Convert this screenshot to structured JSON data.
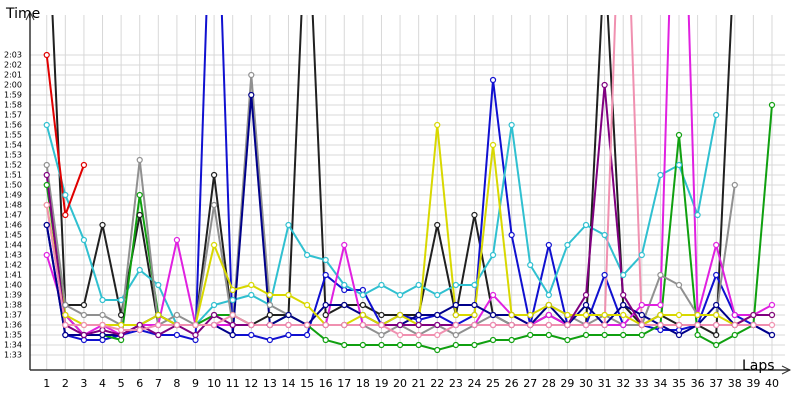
{
  "chart_data": {
    "type": "line",
    "y_label": "Time",
    "x_label": "Laps",
    "x": [
      1,
      2,
      3,
      4,
      5,
      6,
      7,
      8,
      9,
      10,
      11,
      12,
      13,
      14,
      15,
      16,
      17,
      18,
      19,
      20,
      21,
      22,
      23,
      24,
      25,
      26,
      27,
      28,
      29,
      30,
      31,
      32,
      33,
      34,
      35,
      36,
      37,
      38,
      39,
      40
    ],
    "xlim": [
      0.1,
      40.7
    ],
    "xticks": [
      1,
      2,
      3,
      4,
      5,
      6,
      7,
      8,
      9,
      10,
      11,
      12,
      13,
      14,
      15,
      16,
      17,
      18,
      19,
      20,
      21,
      22,
      23,
      24,
      25,
      26,
      27,
      28,
      29,
      30,
      31,
      32,
      33,
      34,
      35,
      36,
      37,
      38,
      39,
      40
    ],
    "ylim": [
      91.5,
      127
    ],
    "yticks": [
      {
        "value": 93,
        "label": "1:33"
      },
      {
        "value": 94,
        "label": "1:34"
      },
      {
        "value": 95,
        "label": "1:35"
      },
      {
        "value": 96,
        "label": "1:36"
      },
      {
        "value": 97,
        "label": "1:37"
      },
      {
        "value": 98,
        "label": "1:38"
      },
      {
        "value": 99,
        "label": "1:39"
      },
      {
        "value": 100,
        "label": "1:40"
      },
      {
        "value": 101,
        "label": "1:41"
      },
      {
        "value": 102,
        "label": "1:42"
      },
      {
        "value": 103,
        "label": "1:43"
      },
      {
        "value": 104,
        "label": "1:44"
      },
      {
        "value": 105,
        "label": "1:45"
      },
      {
        "value": 106,
        "label": "1:46"
      },
      {
        "value": 107,
        "label": "1:47"
      },
      {
        "value": 108,
        "label": "1:48"
      },
      {
        "value": 109,
        "label": "1:49"
      },
      {
        "value": 110,
        "label": "1:50"
      },
      {
        "value": 111,
        "label": "1:51"
      },
      {
        "value": 112,
        "label": "1:52"
      },
      {
        "value": 113,
        "label": "1:53"
      },
      {
        "value": 114,
        "label": "1:54"
      },
      {
        "value": 115,
        "label": "1:55"
      },
      {
        "value": 116,
        "label": "1:56"
      },
      {
        "value": 117,
        "label": "1:57"
      },
      {
        "value": 118,
        "label": "1:58"
      },
      {
        "value": 119,
        "label": "1:59"
      },
      {
        "value": 120,
        "label": "2:00"
      },
      {
        "value": 121,
        "label": "2:01"
      },
      {
        "value": 122,
        "label": "2:02"
      },
      {
        "value": 123,
        "label": "2:03"
      }
    ],
    "grid": true,
    "series": [
      {
        "color": "#202020",
        "values": [
          140,
          98,
          98,
          106,
          97,
          107,
          96,
          96,
          96,
          111,
          96,
          96,
          97,
          97,
          140,
          97,
          98,
          98,
          97,
          97,
          97,
          106,
          97,
          107,
          97,
          96,
          96,
          97,
          96,
          96,
          133,
          98,
          96,
          97,
          96,
          96,
          95,
          134,
          null,
          null
        ]
      },
      {
        "color": "#1010d0",
        "values": [
          106,
          95,
          94.5,
          94.5,
          95,
          95.5,
          95,
          95,
          94.5,
          150,
          95,
          95,
          94.5,
          95,
          95,
          101,
          99.5,
          99.5,
          96,
          97,
          96.5,
          97,
          96,
          97,
          120.5,
          105,
          96,
          104,
          96,
          96,
          101,
          96,
          96,
          95.5,
          95.5,
          96,
          101,
          97,
          96,
          95
        ]
      },
      {
        "color": "#30c0d0",
        "values": [
          116,
          109,
          104.5,
          98.5,
          98.5,
          101.5,
          100,
          96,
          96,
          98,
          98.5,
          99,
          98,
          106,
          103,
          102.5,
          100,
          99,
          100,
          99,
          100,
          99,
          100,
          100,
          103,
          116,
          102,
          99,
          104,
          106,
          105,
          101,
          103,
          111,
          112,
          107,
          117,
          null,
          null,
          null
        ]
      },
      {
        "color": "#10a010",
        "values": [
          110,
          97,
          95,
          95,
          94.5,
          109,
          97,
          96,
          96,
          97,
          97,
          96,
          96,
          97,
          96,
          94.5,
          94,
          94,
          94,
          94,
          94,
          93.5,
          94,
          94,
          94.5,
          94.5,
          95,
          95,
          94.5,
          95,
          95,
          95,
          95,
          96,
          115,
          95,
          94,
          95,
          96,
          118
        ]
      },
      {
        "color": "#909090",
        "values": [
          112,
          98,
          97,
          97,
          96,
          112.5,
          96,
          97,
          96,
          108,
          96,
          121,
          98,
          97,
          96,
          96,
          96,
          96,
          95,
          96,
          95,
          96,
          95,
          96,
          97,
          96,
          96,
          98,
          97,
          96,
          97,
          96,
          96,
          101,
          100,
          97,
          97,
          110,
          null,
          null
        ]
      },
      {
        "color": "#e020e0",
        "values": [
          103,
          97,
          95,
          96,
          95,
          96,
          96,
          104.5,
          96,
          96,
          96,
          96,
          96,
          96,
          96,
          96,
          104,
          96,
          96,
          96,
          96,
          96,
          96,
          96,
          99,
          97,
          96,
          97,
          96,
          96,
          96,
          96,
          98,
          98,
          160,
          97,
          104,
          97,
          97,
          98
        ]
      },
      {
        "color": "#00008a",
        "values": [
          106,
          95,
          95,
          95,
          95,
          96,
          97,
          96,
          96,
          96,
          95,
          119,
          96,
          97,
          96,
          98,
          98,
          97,
          96,
          96,
          97,
          97,
          98,
          98,
          97,
          97,
          96,
          98,
          96,
          98,
          96,
          98,
          97,
          96,
          95,
          96,
          98,
          96,
          96,
          95
        ]
      },
      {
        "color": "#d8d800",
        "values": [
          108,
          97,
          96,
          96,
          96,
          96,
          97,
          96,
          96,
          104,
          99.5,
          100,
          99,
          99,
          98,
          96,
          96,
          97,
          96,
          97,
          96,
          116,
          97,
          97,
          114,
          97,
          97,
          98,
          97,
          97,
          97,
          97,
          96,
          97,
          97,
          97,
          97,
          96,
          97,
          97
        ]
      },
      {
        "color": "#800080",
        "values": [
          111,
          96,
          95,
          95.5,
          95,
          96,
          95,
          96,
          95,
          97,
          96,
          96,
          96,
          96,
          96,
          96,
          96,
          96,
          96,
          96,
          96,
          96,
          96,
          96,
          96,
          96,
          96,
          96,
          96,
          99,
          120,
          99,
          96,
          96,
          96,
          96,
          96,
          96,
          97,
          97
        ]
      },
      {
        "color": "#f090b0",
        "values": [
          108,
          96,
          96,
          96,
          95.5,
          95.5,
          96,
          96,
          96,
          96,
          97,
          96,
          96,
          96,
          96,
          96,
          96,
          96,
          96,
          95,
          95,
          95,
          96,
          96,
          96,
          96,
          96,
          96,
          96,
          96,
          96,
          150,
          96,
          96,
          96,
          96,
          96,
          96,
          96,
          96
        ]
      },
      {
        "color": "#e00000",
        "values": [
          123,
          107,
          112,
          null,
          null,
          null,
          null,
          null,
          null,
          null,
          null,
          null,
          null,
          null,
          null,
          null,
          null,
          null,
          null,
          null,
          null,
          null,
          null,
          null,
          null,
          null,
          null,
          null,
          null,
          null,
          null,
          null,
          null,
          null,
          null,
          null,
          null,
          null,
          null,
          null
        ]
      }
    ]
  }
}
